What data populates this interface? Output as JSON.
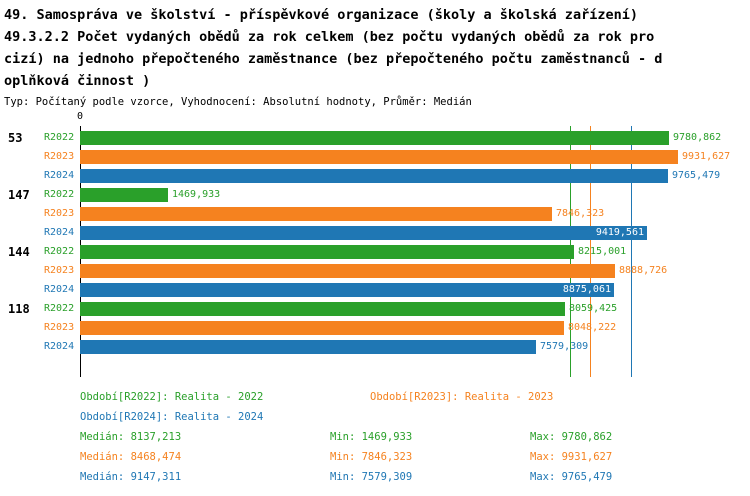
{
  "title": {
    "lines": [
      "49. Samospráva ve školství - příspěvkové organizace (školy a školská zařízení)",
      "49.3.2.2 Počet vydaných obědů za rok celkem (bez počtu vydaných obědů za rok pro",
      "cizí) na jednoho přepočteného zaměstnance (bez přepočteného počtu zaměstnanců - d",
      "oplňková činnost )"
    ],
    "subtitle": "Typ: Počítaný podle vzorce, Vyhodnocení: Absolutní hodnoty, Průměr: Medián"
  },
  "colors": {
    "R2022": "#2aa02a",
    "R2023": "#f5821f",
    "R2024": "#1f77b4",
    "axis": "#000000",
    "inside_label": "#ffffff"
  },
  "chart_data": {
    "type": "bar",
    "orientation": "horizontal",
    "x_axis": {
      "origin_label": "0",
      "min": 0,
      "max": 10900,
      "gridlines": false
    },
    "series_names": [
      "R2022",
      "R2023",
      "R2024"
    ],
    "groups": [
      {
        "label": "53",
        "bars": [
          {
            "series": "R2022",
            "value": 9780.862,
            "display": "9780,862",
            "label_inside": false
          },
          {
            "series": "R2023",
            "value": 9931.627,
            "display": "9931,627",
            "label_inside": false
          },
          {
            "series": "R2024",
            "value": 9765.479,
            "display": "9765,479",
            "label_inside": false
          }
        ]
      },
      {
        "label": "147",
        "bars": [
          {
            "series": "R2022",
            "value": 1469.933,
            "display": "1469,933",
            "label_inside": false
          },
          {
            "series": "R2023",
            "value": 7846.323,
            "display": "7846,323",
            "label_inside": false
          },
          {
            "series": "R2024",
            "value": 9419.561,
            "display": "9419,561",
            "label_inside": true
          }
        ]
      },
      {
        "label": "144",
        "bars": [
          {
            "series": "R2022",
            "value": 8215.001,
            "display": "8215,001",
            "label_inside": false
          },
          {
            "series": "R2023",
            "value": 8888.726,
            "display": "8888,726",
            "label_inside": false
          },
          {
            "series": "R2024",
            "value": 8875.061,
            "display": "8875,061",
            "label_inside": true
          }
        ]
      },
      {
        "label": "118",
        "bars": [
          {
            "series": "R2022",
            "value": 8059.425,
            "display": "8059,425",
            "label_inside": false
          },
          {
            "series": "R2023",
            "value": 8048.222,
            "display": "8048,222",
            "label_inside": false
          },
          {
            "series": "R2024",
            "value": 7579.309,
            "display": "7579,309",
            "label_inside": false
          }
        ]
      }
    ],
    "median_lines": [
      {
        "series": "R2022",
        "value": 8137.213
      },
      {
        "series": "R2023",
        "value": 8468.474
      },
      {
        "series": "R2024",
        "value": 9147.311
      }
    ],
    "legend_position": "bottom"
  },
  "legend": [
    {
      "series": "R2022",
      "text": "Období[R2022]: Realita - 2022"
    },
    {
      "series": "R2023",
      "text": "Období[R2023]: Realita - 2023"
    },
    {
      "series": "R2024",
      "text": "Období[R2024]: Realita - 2024"
    }
  ],
  "stats": [
    {
      "series": "R2022",
      "median": "Medián: 8137,213",
      "min": "Min: 1469,933",
      "max": "Max: 9780,862"
    },
    {
      "series": "R2023",
      "median": "Medián: 8468,474",
      "min": "Min: 7846,323",
      "max": "Max: 9931,627"
    },
    {
      "series": "R2024",
      "median": "Medián: 9147,311",
      "min": "Min: 7579,309",
      "max": "Max: 9765,479"
    }
  ]
}
